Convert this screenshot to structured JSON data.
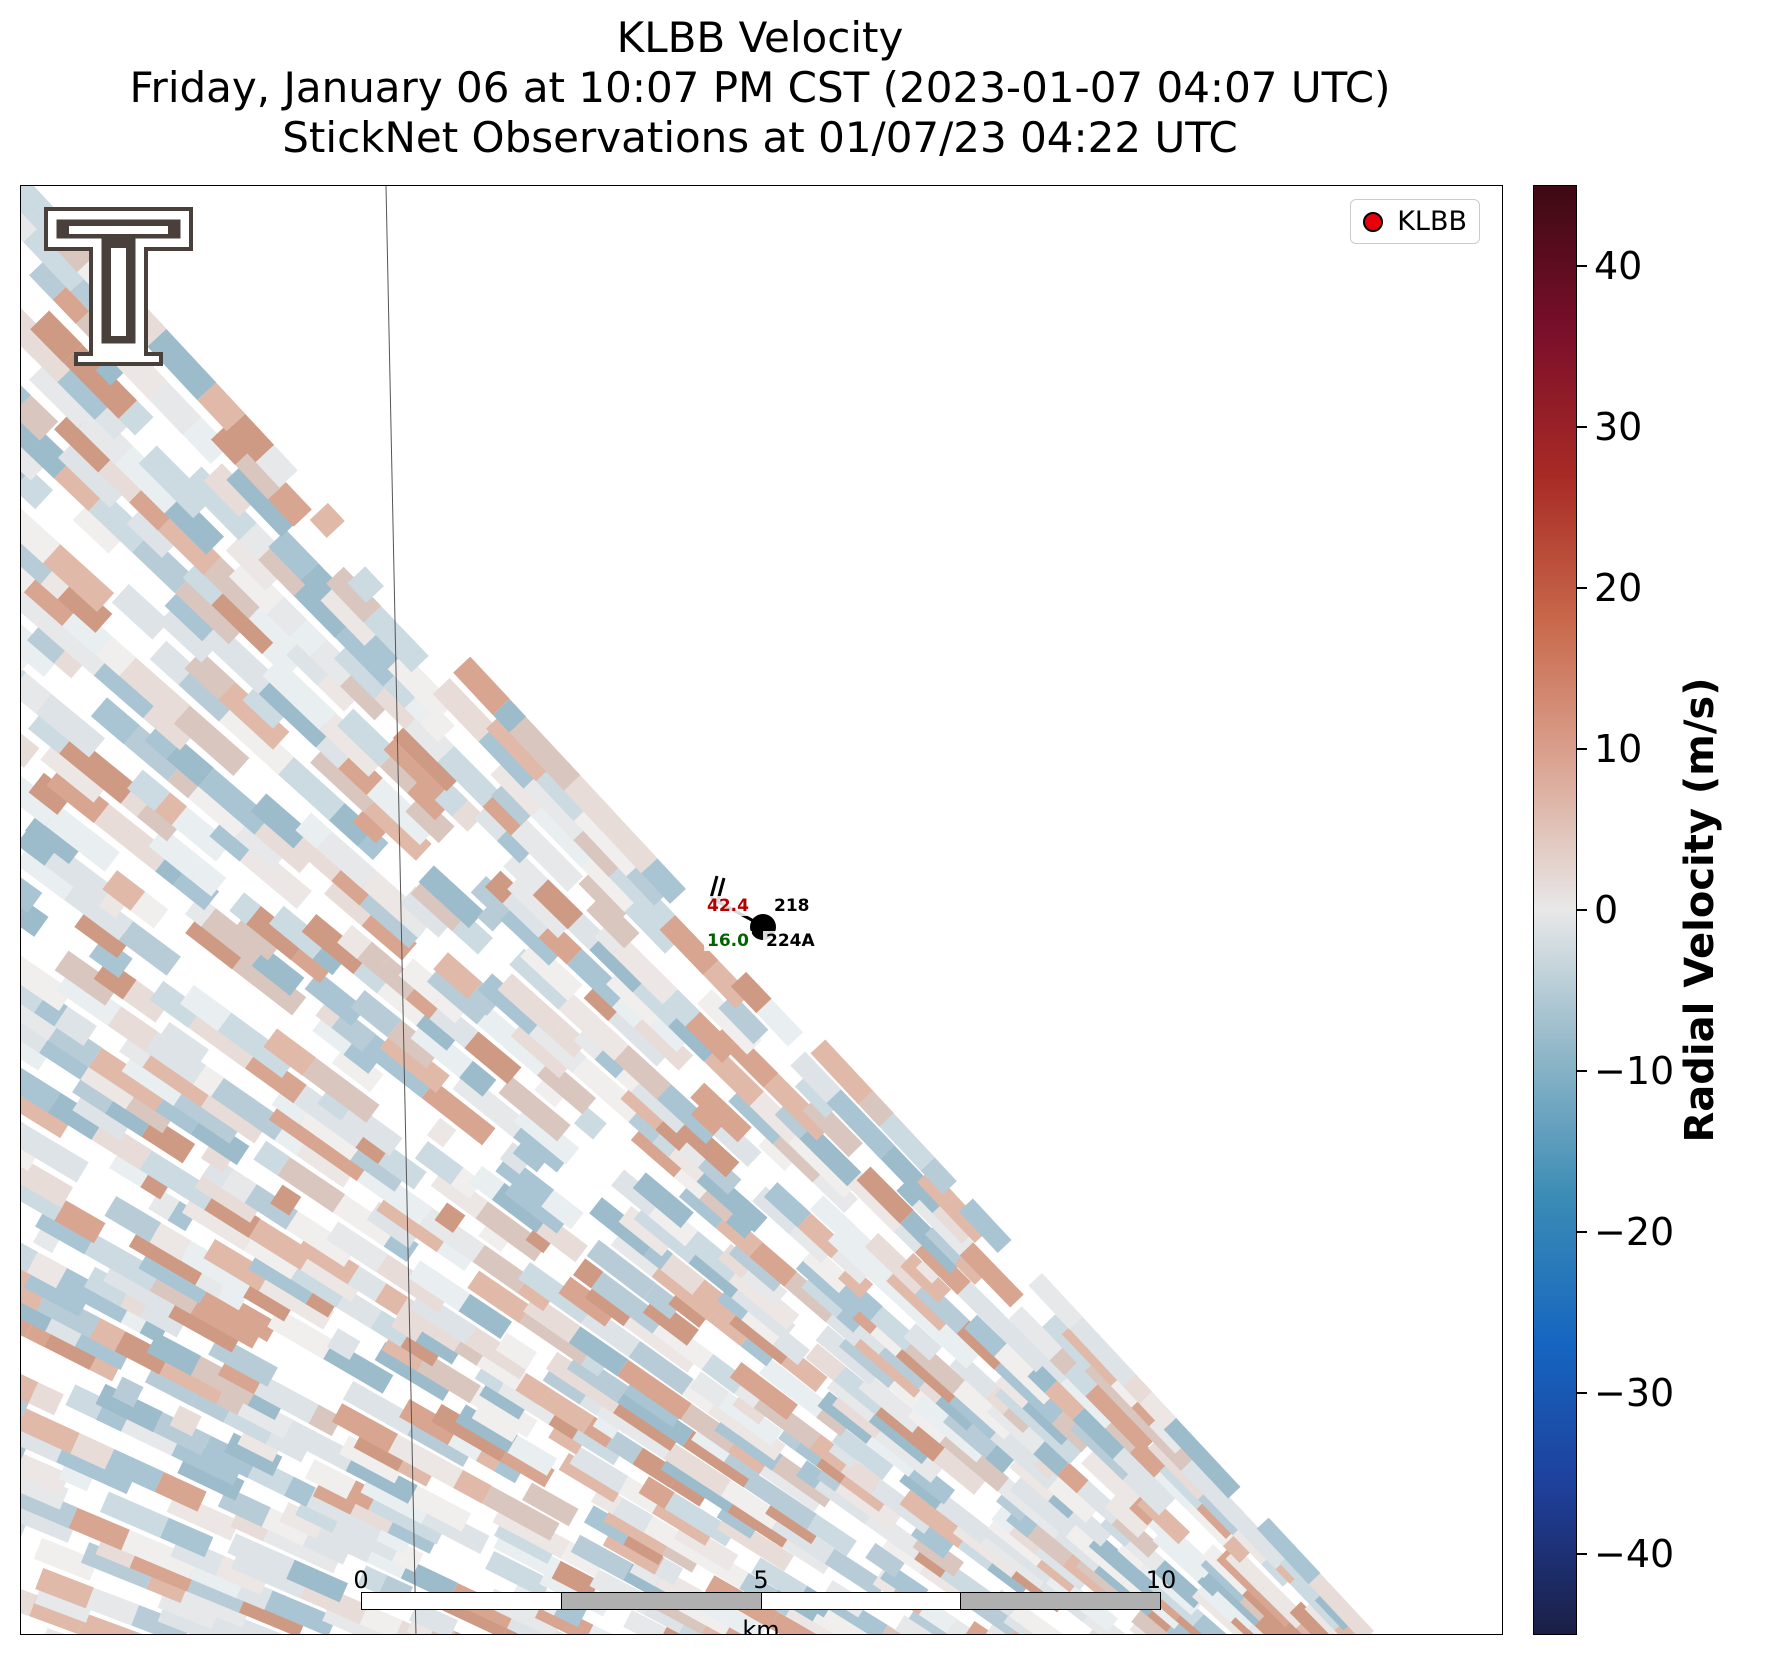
{
  "title": {
    "line1": "KLBB Velocity",
    "line2": "Friday, January 06 at 10:07 PM CST (2023-01-07 04:07 UTC)",
    "line3": "StickNet Observations at 01/07/23 04:22 UTC"
  },
  "legend": {
    "label": "KLBB",
    "marker_color": "#e8000b"
  },
  "station": {
    "temperature": "42.4",
    "dewpoint": "16.0",
    "id_top": "218",
    "id_bottom": "224A",
    "temperature_color": "#b30000",
    "dewpoint_color": "#006400"
  },
  "scalebar": {
    "labels": [
      "0",
      "5",
      "10"
    ],
    "unit": "km"
  },
  "colorbar": {
    "label": "Radial Velocity (m/s)",
    "range": [
      -45,
      45
    ],
    "ticks": [
      {
        "value": 40,
        "label": "40"
      },
      {
        "value": 30,
        "label": "30"
      },
      {
        "value": 20,
        "label": "20"
      },
      {
        "value": 10,
        "label": "10"
      },
      {
        "value": 0,
        "label": "0"
      },
      {
        "value": -10,
        "label": "−10"
      },
      {
        "value": -20,
        "label": "−20"
      },
      {
        "value": -30,
        "label": "−30"
      },
      {
        "value": -40,
        "label": "−40"
      }
    ],
    "colors": [
      "#1b1f45",
      "#1f3f9a",
      "#1565c0",
      "#3a8bb5",
      "#8fb6c8",
      "#e8e8e8",
      "#dba593",
      "#c8684b",
      "#a82a25",
      "#7a0f2a",
      "#3d0a14"
    ]
  },
  "logo": "texas-tech-double-t-logo"
}
